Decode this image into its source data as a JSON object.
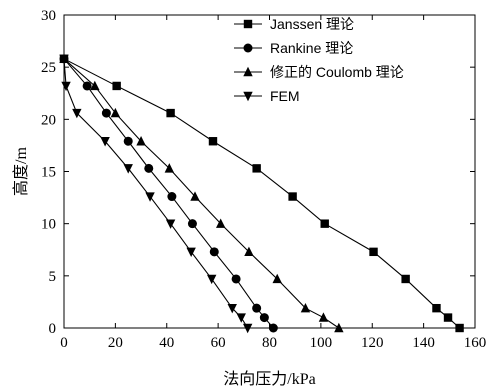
{
  "chart_data": {
    "type": "line",
    "xlabel": "法向压力/kPa",
    "ylabel": "高度/m",
    "xlim": [
      0,
      160
    ],
    "ylim": [
      0,
      30
    ],
    "xticks": [
      0,
      20,
      40,
      60,
      80,
      100,
      120,
      140,
      160
    ],
    "yticks": [
      0,
      5,
      10,
      15,
      20,
      25,
      30
    ],
    "grid": false,
    "legend_position": "top-right",
    "series": [
      {
        "name": "Janssen 理论",
        "marker": "square",
        "points": [
          [
            0,
            25.8
          ],
          [
            20.5,
            23.2
          ],
          [
            41.5,
            20.6
          ],
          [
            58,
            17.9
          ],
          [
            75,
            15.3
          ],
          [
            89,
            12.6
          ],
          [
            101.5,
            10.0
          ],
          [
            120.5,
            7.3
          ],
          [
            133,
            4.7
          ],
          [
            145,
            1.9
          ],
          [
            149.5,
            1.0
          ],
          [
            154,
            0
          ]
        ]
      },
      {
        "name": "Rankine 理论",
        "marker": "circle",
        "points": [
          [
            0,
            25.8
          ],
          [
            9,
            23.2
          ],
          [
            16.5,
            20.6
          ],
          [
            25,
            17.9
          ],
          [
            33,
            15.3
          ],
          [
            42,
            12.6
          ],
          [
            50,
            10.0
          ],
          [
            58.5,
            7.3
          ],
          [
            67,
            4.7
          ],
          [
            75,
            1.9
          ],
          [
            78,
            1.0
          ],
          [
            81.5,
            0
          ]
        ]
      },
      {
        "name": "修正的 Coulomb 理论",
        "marker": "triangle-up",
        "points": [
          [
            0,
            25.8
          ],
          [
            12,
            23.2
          ],
          [
            20,
            20.6
          ],
          [
            30,
            17.9
          ],
          [
            41,
            15.3
          ],
          [
            51,
            12.6
          ],
          [
            61,
            10.0
          ],
          [
            72,
            7.3
          ],
          [
            83,
            4.7
          ],
          [
            94,
            1.9
          ],
          [
            101,
            1.0
          ],
          [
            107,
            0
          ]
        ]
      },
      {
        "name": "FEM",
        "marker": "triangle-down",
        "points": [
          [
            0,
            25.8
          ],
          [
            0.8,
            23.2
          ],
          [
            5,
            20.6
          ],
          [
            16,
            17.9
          ],
          [
            25,
            15.3
          ],
          [
            33.5,
            12.6
          ],
          [
            41.5,
            10.0
          ],
          [
            49.5,
            7.3
          ],
          [
            57.5,
            4.7
          ],
          [
            65.5,
            1.9
          ],
          [
            69,
            1.0
          ],
          [
            71.5,
            0
          ]
        ]
      }
    ]
  }
}
